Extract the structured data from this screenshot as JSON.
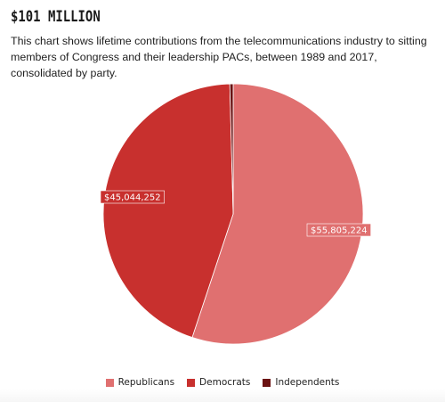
{
  "header": {
    "title": "$101 MILLION",
    "subtitle": "This chart shows lifetime contributions from the telecommunications industry to sitting members of Congress and their leadership PACs, between 1989 and 2017, consolidated by party."
  },
  "chart_data": {
    "type": "pie",
    "title": "$101 MILLION",
    "subtitle": "This chart shows lifetime contributions from the telecommunications industry to sitting members of Congress and their leadership PACs, between 1989 and 2017, consolidated by party.",
    "legend": "bottom",
    "slices": [
      {
        "name": "Republicans",
        "value": 55805224,
        "label": "$55,805,224",
        "color": "#e07070"
      },
      {
        "name": "Democrats",
        "value": 45044252,
        "label": "$45,044,252",
        "color": "#c8302e"
      },
      {
        "name": "Independents",
        "value": 420000,
        "label": "",
        "color": "#6b1212"
      }
    ]
  }
}
